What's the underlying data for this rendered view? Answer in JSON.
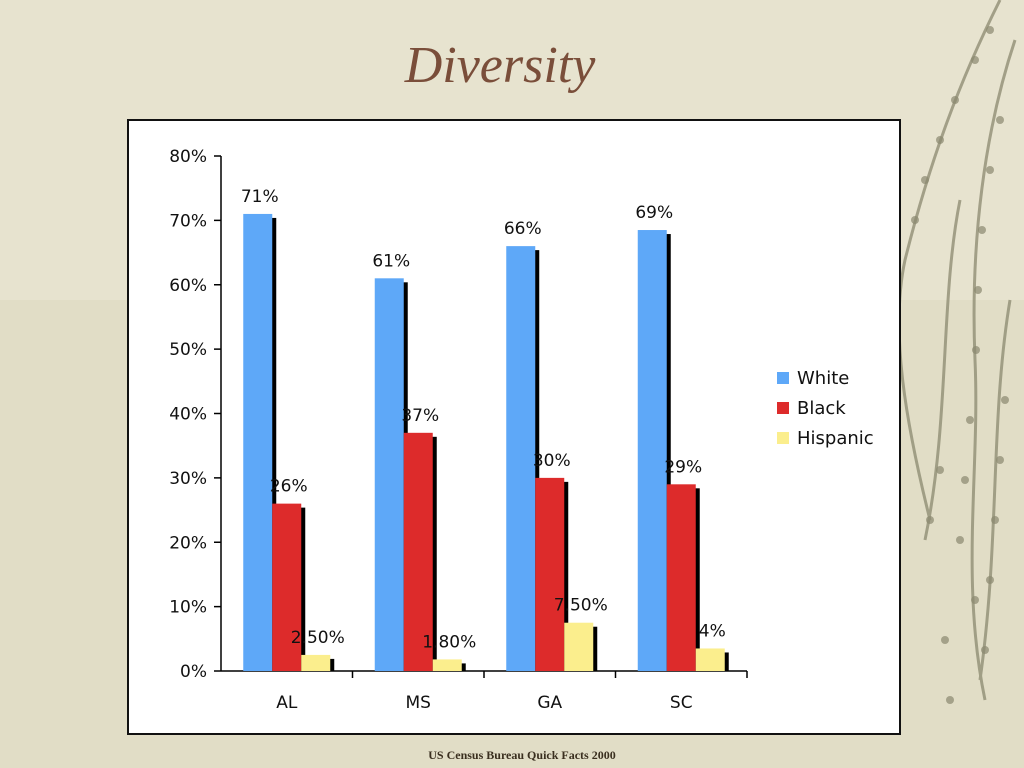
{
  "slide": {
    "title": "Diversity",
    "footer": "US Census Bureau Quick Facts 2000"
  },
  "colors": {
    "background": "#e7e3cf",
    "title": "#7a4e3a",
    "white_series": "#5ea8f8",
    "black_series": "#dd2b2b",
    "hispanic_series": "#fbee8d"
  },
  "chart_data": {
    "type": "bar",
    "title": "",
    "xlabel": "",
    "ylabel": "",
    "categories": [
      "AL",
      "MS",
      "GA",
      "SC"
    ],
    "ylim": [
      0,
      80
    ],
    "yticks": [
      "0%",
      "10%",
      "20%",
      "30%",
      "40%",
      "50%",
      "60%",
      "70%",
      "80%"
    ],
    "grid": false,
    "legend_position": "right",
    "series": [
      {
        "name": "White",
        "color": "#5ea8f8",
        "values": [
          71,
          61,
          66,
          68.5
        ],
        "labels": [
          "71%",
          "61%",
          "66%",
          "69%"
        ]
      },
      {
        "name": "Black",
        "color": "#dd2b2b",
        "values": [
          26,
          37,
          30,
          29
        ],
        "labels": [
          "26%",
          "37%",
          "30%",
          "29%"
        ]
      },
      {
        "name": "Hispanic",
        "color": "#fbee8d",
        "values": [
          2.5,
          1.8,
          7.5,
          3.5
        ],
        "labels": [
          "2.50%",
          "1.80%",
          "7.50%",
          "4%"
        ]
      }
    ]
  }
}
